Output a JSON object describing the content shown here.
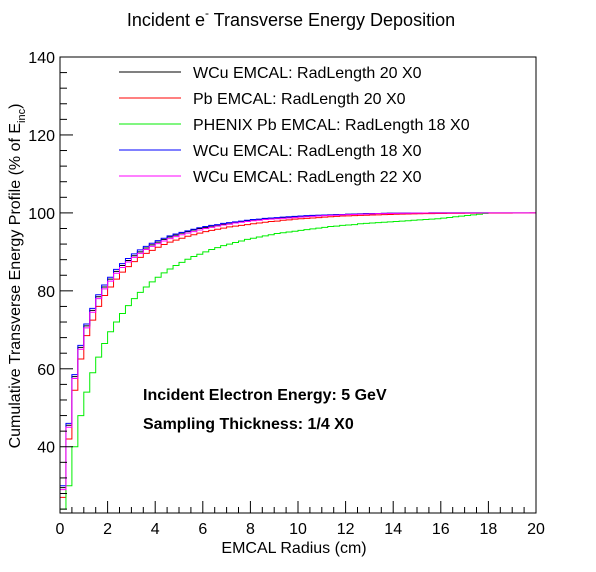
{
  "chart_data": {
    "type": "line",
    "title": {
      "main": "Incident e",
      "sup": "-",
      "rest": " Transverse Energy Deposition"
    },
    "xlabel": "EMCAL Radius (cm)",
    "ylabel": {
      "main": "Cumulative Transverse Energy Profile (% of E",
      "sub": "inc",
      "close": ")"
    },
    "xlim": [
      0,
      20
    ],
    "ylim": [
      23,
      140
    ],
    "x_ticks": [
      0,
      2,
      4,
      6,
      8,
      10,
      12,
      14,
      16,
      18,
      20
    ],
    "y_ticks": [
      40,
      60,
      80,
      100,
      120,
      140
    ],
    "x_tick_labels": [
      "0",
      "2",
      "4",
      "6",
      "8",
      "10",
      "12",
      "14",
      "16",
      "18",
      "20"
    ],
    "y_tick_labels": [
      "40",
      "60",
      "80",
      "100",
      "120",
      "140"
    ],
    "bin_width": 0.25,
    "series": [
      {
        "name": "WCu EMCAL: RadLength 20 X0",
        "color": "#000000",
        "x_end": 20,
        "values": [
          29.5,
          45.5,
          58.0,
          65.5,
          71.0,
          75.0,
          78.5,
          81.0,
          83.0,
          85.0,
          86.5,
          87.8,
          89.0,
          90.0,
          91.0,
          91.8,
          92.5,
          93.2,
          93.8,
          94.3,
          94.8,
          95.2,
          95.6,
          96.0,
          96.3,
          96.6,
          96.9,
          97.1,
          97.4,
          97.6,
          97.8,
          98.0,
          98.2,
          98.3,
          98.5,
          98.6,
          98.7,
          98.8,
          98.9,
          99.0,
          99.1,
          99.2,
          99.3,
          99.35,
          99.4,
          99.5,
          99.55,
          99.6,
          99.65,
          99.7,
          99.75,
          99.8,
          99.82,
          99.85,
          99.88,
          99.9,
          99.92,
          99.94,
          99.95,
          99.96,
          99.97,
          99.98,
          99.99,
          100
        ]
      },
      {
        "name": "Pb EMCAL: RadLength 20 X0",
        "color": "#ff0000",
        "x_end": 20,
        "values": [
          27.0,
          42.0,
          54.5,
          62.5,
          68.5,
          72.5,
          76.0,
          78.8,
          81.0,
          83.0,
          84.8,
          86.2,
          87.5,
          88.6,
          89.6,
          90.4,
          91.2,
          91.9,
          92.5,
          93.0,
          93.5,
          94.0,
          94.4,
          94.8,
          95.2,
          95.5,
          95.8,
          96.1,
          96.4,
          96.6,
          96.8,
          97.0,
          97.2,
          97.4,
          97.6,
          97.8,
          97.9,
          98.1,
          98.2,
          98.4,
          98.5,
          98.6,
          98.7,
          98.8,
          98.9,
          99.0,
          99.1,
          99.2,
          99.25,
          99.3,
          99.35,
          99.4,
          99.45,
          99.5,
          99.55,
          99.6,
          99.65,
          99.7,
          99.72,
          99.75,
          99.78,
          99.8,
          99.82,
          99.85
        ]
      },
      {
        "name": "PHENIX Pb EMCAL: RadLength 18 X0",
        "color": "#00ee00",
        "x_end": 18,
        "values": [
          24.0,
          30.0,
          40.0,
          48.0,
          54.0,
          59.0,
          63.0,
          66.5,
          69.5,
          72.0,
          74.2,
          76.2,
          78.0,
          79.6,
          81.0,
          82.3,
          83.5,
          84.6,
          85.6,
          86.5,
          87.3,
          88.1,
          88.8,
          89.4,
          90.0,
          90.6,
          91.1,
          91.6,
          92.0,
          92.4,
          92.8,
          93.2,
          93.5,
          93.8,
          94.1,
          94.4,
          94.7,
          94.9,
          95.1,
          95.3,
          95.5,
          95.7,
          95.9,
          96.1,
          96.3,
          96.5,
          96.6,
          96.8,
          96.9,
          97.0,
          97.2,
          97.3,
          97.4,
          97.5,
          97.6,
          97.7,
          97.8,
          97.9,
          98.0,
          98.1,
          98.2,
          98.3,
          98.4,
          98.5
        ]
      },
      {
        "name": "WCu EMCAL: RadLength 18 X0",
        "color": "#0000ff",
        "x_end": 18,
        "values": [
          30.0,
          46.0,
          58.5,
          66.0,
          71.5,
          75.5,
          79.0,
          81.5,
          83.5,
          85.5,
          87.0,
          88.3,
          89.5,
          90.5,
          91.4,
          92.2,
          92.9,
          93.5,
          94.1,
          94.6,
          95.0,
          95.4,
          95.8,
          96.2,
          96.5,
          96.8,
          97.0,
          97.3,
          97.5,
          97.7,
          97.9,
          98.1,
          98.3,
          98.4,
          98.6,
          98.7,
          98.8,
          98.9,
          99.0,
          99.1,
          99.2,
          99.3,
          99.35,
          99.4,
          99.45,
          99.5,
          99.55,
          99.6,
          99.65,
          99.7,
          99.75,
          99.8,
          99.82,
          99.85,
          99.88,
          99.9,
          99.92,
          99.94,
          99.95,
          99.96,
          99.97,
          99.98,
          99.99,
          100
        ]
      },
      {
        "name": "WCu EMCAL: RadLength 22 X0",
        "color": "#ff00ff",
        "x_end": 20,
        "values": [
          29.0,
          45.0,
          57.5,
          65.0,
          70.5,
          74.5,
          78.0,
          80.5,
          82.5,
          84.5,
          86.0,
          87.4,
          88.6,
          89.6,
          90.6,
          91.4,
          92.1,
          92.8,
          93.4,
          93.9,
          94.4,
          94.8,
          95.2,
          95.6,
          96.0,
          96.3,
          96.6,
          96.9,
          97.1,
          97.4,
          97.6,
          97.8,
          98.0,
          98.1,
          98.3,
          98.4,
          98.5,
          98.6,
          98.7,
          98.8,
          98.9,
          99.0,
          99.1,
          99.2,
          99.3,
          99.35,
          99.4,
          99.5,
          99.55,
          99.6,
          99.65,
          99.7,
          99.75,
          99.8,
          99.82,
          99.85,
          99.88,
          99.9,
          99.92,
          99.94,
          99.95,
          99.96,
          99.97,
          99.98
        ]
      }
    ],
    "legend": "top",
    "annotations": [
      "Incident Electron Energy: 5 GeV",
      "Sampling Thickness: 1/4 X0"
    ]
  }
}
